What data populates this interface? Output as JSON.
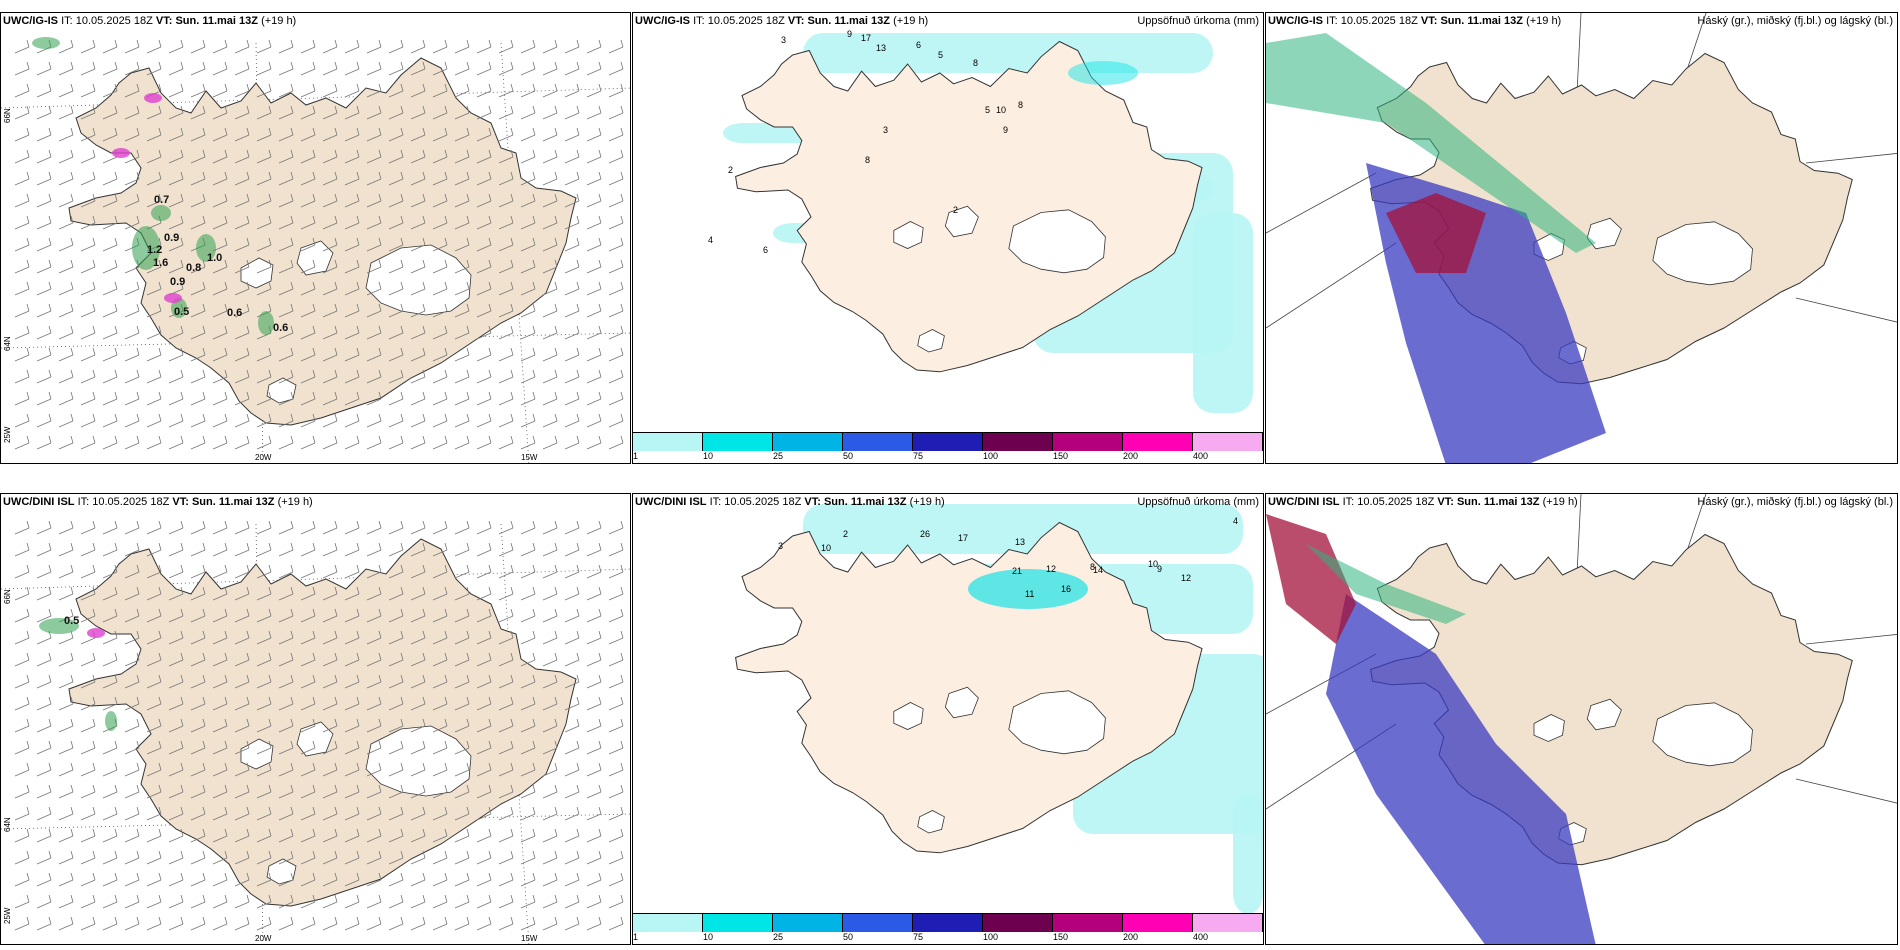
{
  "run_info": {
    "it_label": "IT:",
    "it_value": "10.05.2025 18Z",
    "vt_label": "VT:",
    "vt_value": "Sun. 11.mai 13Z",
    "lead": "(+19 h)"
  },
  "rows": [
    {
      "model": "UWC/IG-IS",
      "wind_labels": [
        "0.7",
        "0.9",
        "1.2",
        "1.6",
        "0.8",
        "1.0",
        "0.9",
        "0.5",
        "0.6",
        "0.6"
      ],
      "precip_labels": [
        "3",
        "9",
        "17",
        "13",
        "6",
        "5",
        "8",
        "5",
        "10",
        "9",
        "8",
        "3",
        "2",
        "4",
        "6",
        "8",
        "2"
      ],
      "cloud_title": "Háský (gr.), miðský (fj.bl.) og lágský (bl.)"
    },
    {
      "model": "UWC/DINI ISL",
      "wind_labels": [
        "0.5"
      ],
      "precip_labels": [
        "3",
        "10",
        "2",
        "26",
        "17",
        "13",
        "21",
        "12",
        "14",
        "16",
        "11",
        "8",
        "10",
        "9",
        "12",
        "4"
      ],
      "cloud_title": "Háský (gr.), miðský (fj.bl.) og lágský (bl.)"
    }
  ],
  "precip_title": "Uppsöfnuð úrkoma (mm)",
  "colorbar": {
    "ticks": [
      "1",
      "10",
      "25",
      "50",
      "75",
      "100",
      "150",
      "200",
      "400"
    ],
    "colors": [
      "#b8f6f6",
      "#00e6e6",
      "#00b4e6",
      "#2a5ae6",
      "#1e1eb4",
      "#6e0050",
      "#b4007a",
      "#ff00b4",
      "#f6aaf0"
    ]
  },
  "grid": {
    "lat_66": "66N",
    "lat_64": "64N",
    "lon_20": "20W",
    "lon_15": "15W",
    "lon_25": "25W"
  },
  "colors": {
    "land": "#f1e2cf",
    "land_precip": "#fcefe1",
    "glacier": "#ffffff",
    "precip_light": "#b7f5f5",
    "precip_mid": "#19e3e6",
    "wind_green": "#30a050",
    "cloud_high": "#2fb57f",
    "cloud_mid": "#a3123a",
    "cloud_low": "#3a3bc0"
  }
}
